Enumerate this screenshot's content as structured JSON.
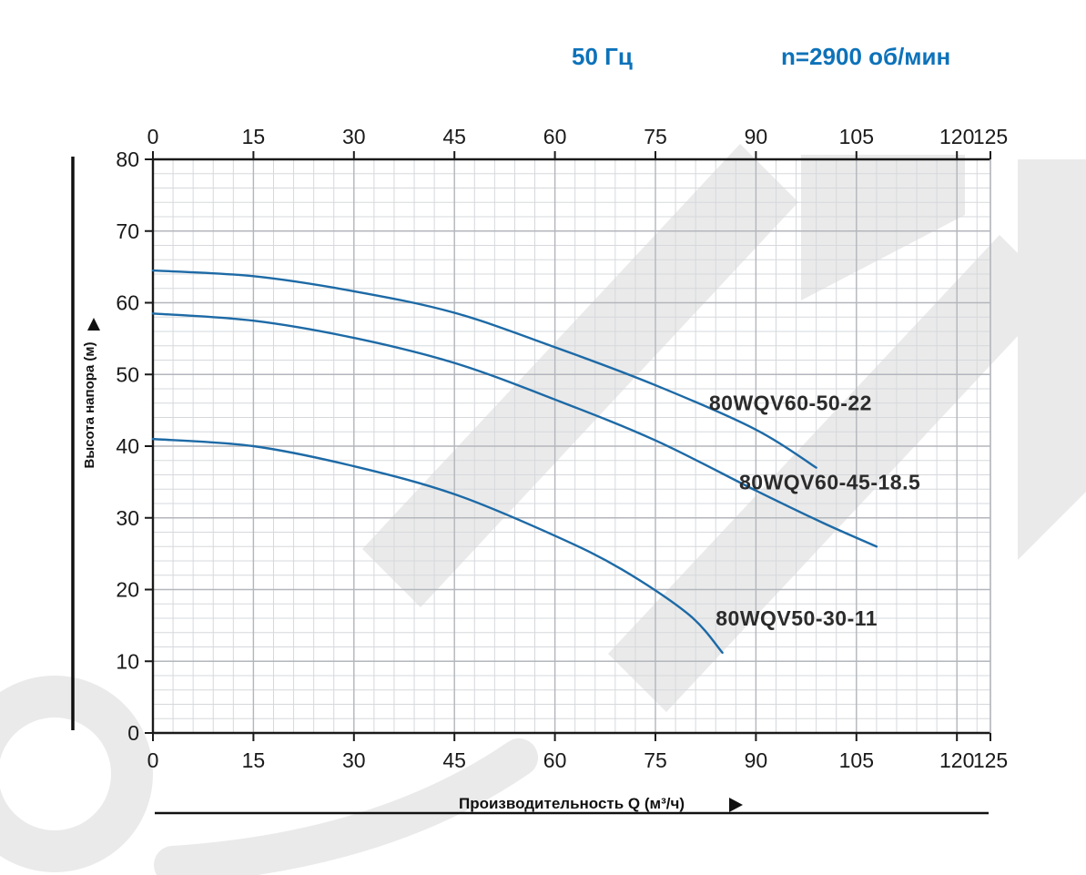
{
  "header": {
    "frequency": "50 Гц",
    "speed": "n=2900 об/мин",
    "accent_color": "#0d72b9"
  },
  "chart_data": {
    "type": "line",
    "title": "",
    "xlabel": "Производительность Q (м³/ч)",
    "ylabel": "Высота напора (м)",
    "xlim": [
      0,
      125
    ],
    "ylim": [
      0,
      80
    ],
    "x_ticks": [
      0,
      15,
      30,
      45,
      60,
      75,
      90,
      105,
      120,
      125
    ],
    "y_ticks": [
      0,
      10,
      20,
      30,
      40,
      50,
      60,
      70,
      80
    ],
    "grid": {
      "minor_x_step": 3,
      "minor_y_step": 2,
      "minor_color": "#d6d8dc",
      "major_color": "#b3b6bc"
    },
    "line_color": "#1d6aa6",
    "axis_color": "#1a1a1a",
    "legend_position": "on-curve",
    "series": [
      {
        "name": "80WQV60-50-22",
        "label_pos": {
          "x": 83,
          "y": 45
        },
        "points": [
          [
            0,
            64.5
          ],
          [
            15,
            63.7
          ],
          [
            30,
            61.6
          ],
          [
            45,
            58.6
          ],
          [
            60,
            53.8
          ],
          [
            75,
            48.5
          ],
          [
            90,
            42.3
          ],
          [
            99,
            37
          ]
        ]
      },
      {
        "name": "80WQV60-45-18.5",
        "label_pos": {
          "x": 87.5,
          "y": 34
        },
        "points": [
          [
            0,
            58.5
          ],
          [
            15,
            57.5
          ],
          [
            30,
            55.1
          ],
          [
            45,
            51.6
          ],
          [
            60,
            46.5
          ],
          [
            75,
            40.8
          ],
          [
            90,
            33.8
          ],
          [
            100,
            29.3
          ],
          [
            108,
            26
          ]
        ]
      },
      {
        "name": "80WQV50-30-11",
        "label_pos": {
          "x": 84,
          "y": 15
        },
        "points": [
          [
            0,
            41
          ],
          [
            15,
            40
          ],
          [
            30,
            37.2
          ],
          [
            45,
            33.3
          ],
          [
            60,
            27.5
          ],
          [
            70,
            22.8
          ],
          [
            80,
            16.5
          ],
          [
            85,
            11.2
          ]
        ]
      }
    ]
  }
}
